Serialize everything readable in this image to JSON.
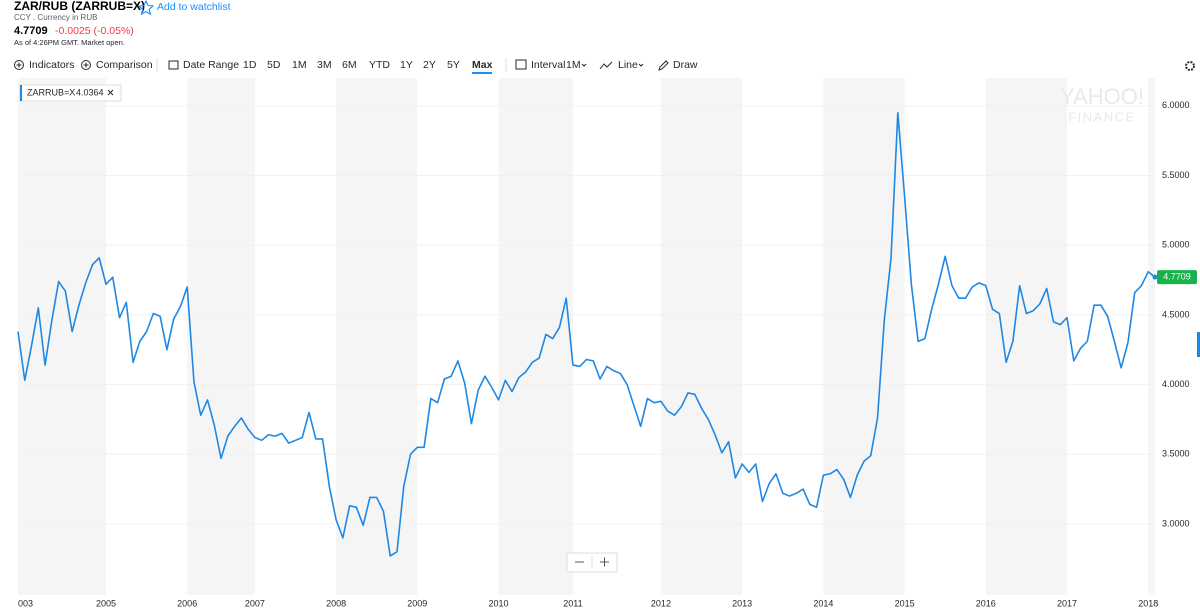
{
  "header": {
    "title": "ZAR/RUB (ZARRUB=X)",
    "watchlist": "Add to watchlist",
    "subtitle": "CCY . Currency in RUB",
    "price": "4.7709",
    "change": "-0.0025 (-0.05%)",
    "timestamp": "As of 4:26PM GMT. Market open."
  },
  "toolbar": {
    "indicators": "Indicators",
    "comparison": "Comparison",
    "date_range": "Date Range",
    "ranges": [
      "1D",
      "5D",
      "1M",
      "3M",
      "6M",
      "YTD",
      "1Y",
      "2Y",
      "5Y",
      "Max"
    ],
    "interval": "Interval",
    "interval_value": "1M",
    "chart_type": "Line",
    "draw": "Draw"
  },
  "chart_data": {
    "type": "line",
    "watermark": [
      "YAHOO!",
      "FINANCE"
    ],
    "legend_value": "4.0364",
    "categories": [
      "003",
      null,
      null,
      null,
      null,
      null,
      null,
      null,
      null,
      null,
      null,
      null,
      null,
      "2005",
      null,
      null,
      null,
      null,
      null,
      null,
      null,
      null,
      null,
      null,
      null,
      "2006",
      null,
      null,
      null,
      null,
      null,
      null,
      null,
      null,
      null,
      "2007",
      null,
      null,
      null,
      null,
      null,
      null,
      null,
      null,
      null,
      null,
      null,
      "2008",
      null,
      null,
      null,
      null,
      null,
      null,
      null,
      null,
      null,
      null,
      null,
      "2009",
      null,
      null,
      null,
      null,
      null,
      null,
      null,
      null,
      null,
      null,
      null,
      "2010",
      null,
      null,
      null,
      null,
      null,
      null,
      null,
      null,
      null,
      null,
      "2011",
      null,
      null,
      null,
      null,
      null,
      null,
      null,
      null,
      null,
      null,
      null,
      null,
      "2012",
      null,
      null,
      null,
      null,
      null,
      null,
      null,
      null,
      null,
      null,
      null,
      "2013",
      null,
      null,
      null,
      null,
      null,
      null,
      null,
      null,
      null,
      null,
      null,
      "2014",
      null,
      null,
      null,
      null,
      null,
      null,
      null,
      null,
      null,
      null,
      null,
      "2015",
      null,
      null,
      null,
      null,
      null,
      null,
      null,
      null,
      null,
      null,
      null,
      "2016",
      null,
      null,
      null,
      null,
      null,
      null,
      null,
      null,
      null,
      null,
      null,
      "2017",
      null,
      null,
      null,
      null,
      null,
      null,
      null,
      null,
      null,
      null,
      null,
      "2018",
      null
    ],
    "series": [
      {
        "name": "ZARRUB=X",
        "color": "#1e88e5",
        "values": [
          4.38,
          4.03,
          4.28,
          4.55,
          4.14,
          4.46,
          4.74,
          4.67,
          4.38,
          4.57,
          4.73,
          4.86,
          4.91,
          4.72,
          4.77,
          4.48,
          4.59,
          4.16,
          4.31,
          4.38,
          4.51,
          4.49,
          4.25,
          4.47,
          4.56,
          4.7,
          4.02,
          3.78,
          3.89,
          3.71,
          3.47,
          3.63,
          3.7,
          3.76,
          3.68,
          3.62,
          3.6,
          3.64,
          3.63,
          3.65,
          3.58,
          3.6,
          3.62,
          3.8,
          3.61,
          3.61,
          3.27,
          3.03,
          2.9,
          3.13,
          3.12,
          2.99,
          3.19,
          3.19,
          3.09,
          2.77,
          2.8,
          3.27,
          3.5,
          3.55,
          3.55,
          3.9,
          3.87,
          4.04,
          4.06,
          4.17,
          4.01,
          3.72,
          3.96,
          4.06,
          3.98,
          3.89,
          4.03,
          3.95,
          4.05,
          4.09,
          4.16,
          4.19,
          4.36,
          4.33,
          4.41,
          4.62,
          4.14,
          4.13,
          4.18,
          4.17,
          4.04,
          4.13,
          4.1,
          4.08,
          4.0,
          3.85,
          3.7,
          3.9,
          3.87,
          3.88,
          3.81,
          3.78,
          3.84,
          3.94,
          3.93,
          3.83,
          3.75,
          3.64,
          3.51,
          3.59,
          3.33,
          3.43,
          3.37,
          3.43,
          3.16,
          3.29,
          3.36,
          3.22,
          3.2,
          3.22,
          3.25,
          3.14,
          3.12,
          3.35,
          3.36,
          3.39,
          3.32,
          3.19,
          3.35,
          3.45,
          3.49,
          3.76,
          4.46,
          4.91,
          5.95,
          5.35,
          4.72,
          4.31,
          4.33,
          4.54,
          4.72,
          4.92,
          4.71,
          4.62,
          4.62,
          4.7,
          4.73,
          4.71,
          4.54,
          4.51,
          4.16,
          4.31,
          4.71,
          4.51,
          4.53,
          4.58,
          4.69,
          4.45,
          4.43,
          4.48,
          4.17,
          4.26,
          4.31,
          4.57,
          4.57,
          4.49,
          4.31,
          4.12,
          4.3,
          4.66,
          4.71,
          4.81,
          4.7709
        ]
      }
    ],
    "ylim": [
      2.49,
      6.2
    ],
    "yticks": [
      {
        "value": 3,
        "label": "3.0000"
      },
      {
        "value": 3.5,
        "label": "3.5000"
      },
      {
        "value": 4,
        "label": "4.0000"
      },
      {
        "value": 4.5,
        "label": "4.5000"
      },
      {
        "value": 5,
        "label": "5.0000"
      },
      {
        "value": 5.5,
        "label": "5.5000"
      },
      {
        "value": 6,
        "label": "6.0000"
      }
    ],
    "grid": true
  }
}
